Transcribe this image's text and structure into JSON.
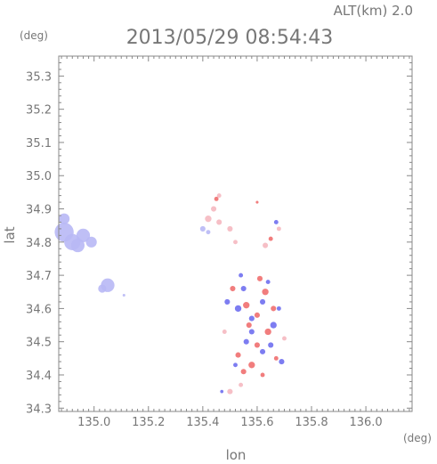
{
  "header": {
    "altitude_label": "ALT(km) 2.0",
    "datetime": "2013/05/29 08:54:43"
  },
  "chart_data": {
    "type": "scatter",
    "title": "2013/05/29 08:54:43",
    "xlabel": "lon",
    "ylabel": "lat",
    "x_unit": "(deg)",
    "y_unit": "(deg)",
    "xlim": [
      134.87,
      136.17
    ],
    "ylim": [
      34.29,
      35.36
    ],
    "x_ticks": [
      "135.0",
      "135.2",
      "135.4",
      "135.6",
      "135.8",
      "136.0"
    ],
    "y_ticks": [
      "34.3",
      "34.4",
      "34.5",
      "34.6",
      "34.7",
      "34.8",
      "34.9",
      "35.0",
      "35.1",
      "35.2",
      "35.3"
    ],
    "grid": false,
    "colors": {
      "toward": "#6f6ff0",
      "away": "#f06f6f",
      "weak_toward": "#b8b8f5",
      "weak_away": "#f5b8c0",
      "axis": "#888888"
    },
    "series": [
      {
        "color_key": "weak_toward",
        "points": [
          [
            134.89,
            34.83,
            0.035
          ],
          [
            134.92,
            34.8,
            0.03
          ],
          [
            134.96,
            34.82,
            0.025
          ],
          [
            134.89,
            34.87,
            0.02
          ],
          [
            134.99,
            34.8,
            0.02
          ],
          [
            134.94,
            34.79,
            0.025
          ],
          [
            135.05,
            34.67,
            0.025
          ],
          [
            135.03,
            34.66,
            0.015
          ],
          [
            135.11,
            34.64,
            0.005
          ],
          [
            135.4,
            34.84,
            0.01
          ],
          [
            135.42,
            34.83,
            0.008
          ]
        ]
      },
      {
        "color_key": "toward",
        "points": [
          [
            135.49,
            34.62,
            0.01
          ],
          [
            135.53,
            34.6,
            0.012
          ],
          [
            135.55,
            34.66,
            0.01
          ],
          [
            135.58,
            34.57,
            0.01
          ],
          [
            135.62,
            34.62,
            0.01
          ],
          [
            135.66,
            34.55,
            0.012
          ],
          [
            135.68,
            34.6,
            0.008
          ],
          [
            135.56,
            34.5,
            0.01
          ],
          [
            135.62,
            34.47,
            0.01
          ],
          [
            135.69,
            34.44,
            0.01
          ],
          [
            135.52,
            34.43,
            0.008
          ],
          [
            135.64,
            34.68,
            0.008
          ],
          [
            135.67,
            34.86,
            0.008
          ],
          [
            135.47,
            34.35,
            0.006
          ],
          [
            135.58,
            34.53,
            0.01
          ],
          [
            135.54,
            34.7,
            0.008
          ],
          [
            135.65,
            34.49,
            0.01
          ]
        ]
      },
      {
        "color_key": "away",
        "points": [
          [
            135.51,
            34.66,
            0.01
          ],
          [
            135.56,
            34.61,
            0.012
          ],
          [
            135.6,
            34.58,
            0.01
          ],
          [
            135.63,
            34.65,
            0.012
          ],
          [
            135.57,
            34.55,
            0.01
          ],
          [
            135.64,
            34.53,
            0.012
          ],
          [
            135.6,
            34.49,
            0.01
          ],
          [
            135.58,
            34.43,
            0.012
          ],
          [
            135.55,
            34.41,
            0.01
          ],
          [
            135.62,
            34.4,
            0.008
          ],
          [
            135.66,
            34.6,
            0.01
          ],
          [
            135.6,
            34.92,
            0.005
          ],
          [
            135.45,
            34.93,
            0.008
          ],
          [
            135.65,
            34.81,
            0.008
          ],
          [
            135.53,
            34.46,
            0.01
          ],
          [
            135.61,
            34.69,
            0.01
          ],
          [
            135.67,
            34.45,
            0.008
          ]
        ]
      },
      {
        "color_key": "weak_away",
        "points": [
          [
            135.42,
            34.87,
            0.012
          ],
          [
            135.44,
            34.9,
            0.01
          ],
          [
            135.46,
            34.86,
            0.01
          ],
          [
            135.5,
            34.84,
            0.01
          ],
          [
            135.46,
            34.94,
            0.008
          ],
          [
            135.52,
            34.8,
            0.008
          ],
          [
            135.5,
            34.35,
            0.01
          ],
          [
            135.54,
            34.37,
            0.008
          ],
          [
            135.63,
            34.79,
            0.01
          ],
          [
            135.68,
            34.84,
            0.008
          ],
          [
            135.48,
            34.53,
            0.008
          ],
          [
            135.7,
            34.51,
            0.008
          ]
        ]
      }
    ]
  }
}
